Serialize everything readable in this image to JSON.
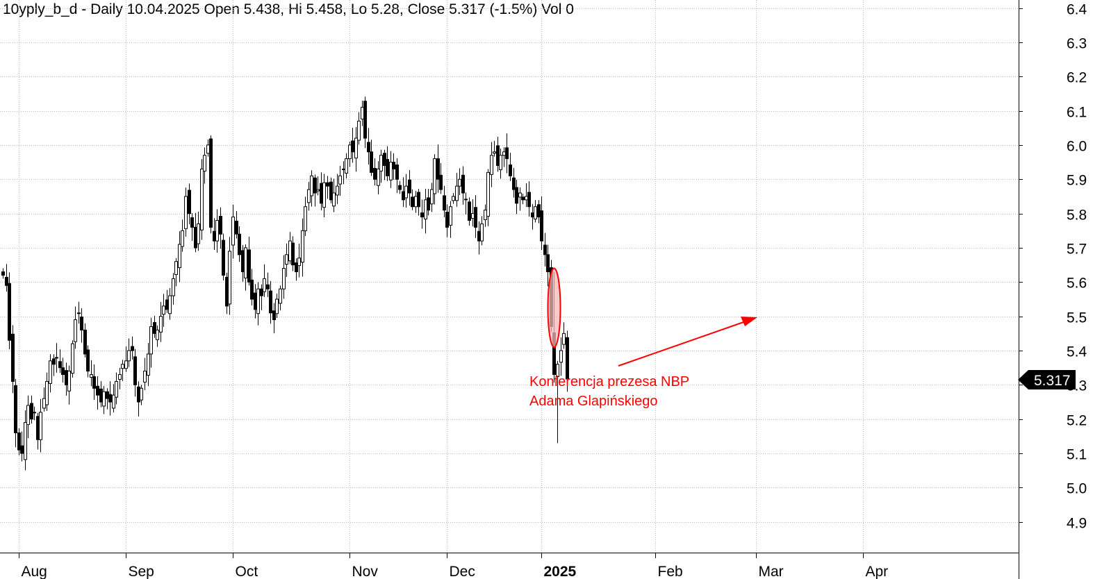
{
  "header": {
    "title": "10yply_b_d - Daily 10.04.2025 Open 5.438, Hi 5.458, Lo 5.28, Close 5.317 (-1.5%) Vol 0"
  },
  "chart_data": {
    "type": "candlestick",
    "symbol": "10yply_b_d",
    "period": "Daily",
    "last_bar": {
      "date": "10.04.2025",
      "open": 5.438,
      "high": 5.458,
      "low": 5.28,
      "close": 5.317,
      "change": "-1.5%",
      "volume": 0
    },
    "price_tag": "5.317",
    "ylim": [
      4.84,
      6.44
    ],
    "y_ticks": [
      "4.9",
      "5.0",
      "5.1",
      "5.2",
      "5.3",
      "5.4",
      "5.5",
      "5.6",
      "5.7",
      "5.8",
      "5.9",
      "6.0",
      "6.1",
      "6.2",
      "6.3",
      "6.4"
    ],
    "x_ticks": [
      {
        "label": "Aug",
        "bar": 5,
        "bold": false
      },
      {
        "label": "Sep",
        "bar": 39,
        "bold": false
      },
      {
        "label": "Oct",
        "bar": 73,
        "bold": false
      },
      {
        "label": "Nov",
        "bar": 110,
        "bold": false
      },
      {
        "label": "Dec",
        "bar": 141,
        "bold": false
      },
      {
        "label": "2025",
        "bar": 171,
        "bold": true
      },
      {
        "label": "Feb",
        "bar": 207,
        "bold": false
      },
      {
        "label": "Mar",
        "bar": 239,
        "bold": false
      },
      {
        "label": "Apr",
        "bar": 273,
        "bold": false
      }
    ],
    "grid": true,
    "bullish_color": "#ffffff",
    "bearish_color": "#000000",
    "closes": [
      5.62,
      5.59,
      5.43,
      5.31,
      5.16,
      5.11,
      5.1,
      5.19,
      5.24,
      5.2,
      5.22,
      5.14,
      5.22,
      5.26,
      5.31,
      5.37,
      5.36,
      5.38,
      5.35,
      5.33,
      5.3,
      5.34,
      5.42,
      5.49,
      5.51,
      5.46,
      5.39,
      5.34,
      5.33,
      5.29,
      5.27,
      5.25,
      5.28,
      5.26,
      5.25,
      5.27,
      5.31,
      5.33,
      5.36,
      5.37,
      5.4,
      5.4,
      5.3,
      5.25,
      5.29,
      5.34,
      5.39,
      5.47,
      5.45,
      5.46,
      5.5,
      5.53,
      5.52,
      5.56,
      5.61,
      5.66,
      5.71,
      5.75,
      5.85,
      5.8,
      5.76,
      5.7,
      5.77,
      5.93,
      5.97,
      6.0,
      5.76,
      5.72,
      5.78,
      5.74,
      5.62,
      5.53,
      5.69,
      5.79,
      5.74,
      5.68,
      5.63,
      5.7,
      5.6,
      5.55,
      5.52,
      5.58,
      5.56,
      5.61,
      5.58,
      5.51,
      5.49,
      5.55,
      5.58,
      5.64,
      5.68,
      5.72,
      5.65,
      5.63,
      5.67,
      5.75,
      5.82,
      5.87,
      5.91,
      5.86,
      5.87,
      5.83,
      5.89,
      5.88,
      5.84,
      5.86,
      5.88,
      5.91,
      5.93,
      5.96,
      6.0,
      5.98,
      6.02,
      6.07,
      6.11,
      6.02,
      5.98,
      5.92,
      5.9,
      5.93,
      5.97,
      5.94,
      5.91,
      5.95,
      5.93,
      5.9,
      5.87,
      5.84,
      5.88,
      5.86,
      5.82,
      5.85,
      5.82,
      5.79,
      5.84,
      5.81,
      5.87,
      5.96,
      5.9,
      5.87,
      5.81,
      5.76,
      5.82,
      5.85,
      5.88,
      5.9,
      5.86,
      5.84,
      5.78,
      5.8,
      5.76,
      5.72,
      5.77,
      5.81,
      5.92,
      5.97,
      5.98,
      5.94,
      5.97,
      5.98,
      5.96,
      5.91,
      5.87,
      5.83,
      5.86,
      5.84,
      5.85,
      5.82,
      5.79,
      5.82,
      5.79,
      5.72,
      5.68,
      5.63,
      5.47,
      5.33,
      5.36,
      5.4,
      5.45,
      5.317
    ],
    "annotation": {
      "lines": [
        "Konferencja prezesa NBP",
        "Adama Glapińskiego"
      ],
      "color": "#ff0000",
      "highlight_fill": "#f5b8b8"
    }
  }
}
